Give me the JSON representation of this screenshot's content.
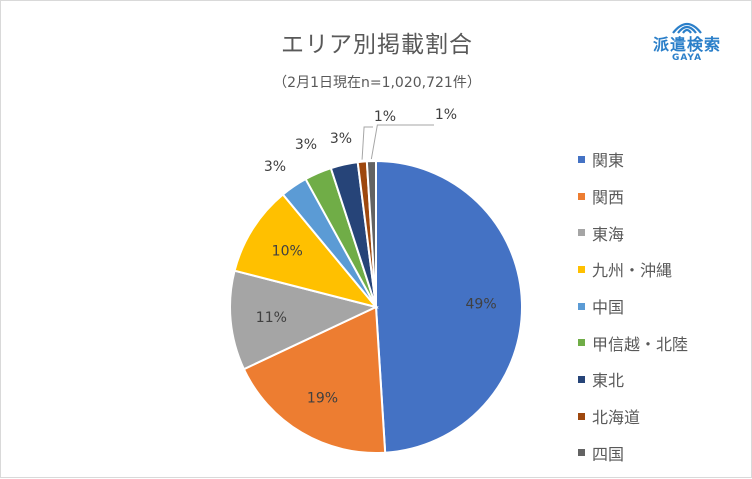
{
  "chart_data": {
    "type": "pie",
    "title": "エリア別掲載割合",
    "subtitle": "（2月1日現在n=1,020,721件）",
    "categories": [
      "関東",
      "関西",
      "東海",
      "九州・沖縄",
      "中国",
      "甲信越・北陸",
      "東北",
      "北海道",
      "四国"
    ],
    "values": [
      49,
      19,
      11,
      10,
      3,
      3,
      3,
      1,
      1
    ],
    "labels": [
      "49%",
      "19%",
      "11%",
      "10%",
      "3%",
      "3%",
      "3%",
      "1%",
      "1%"
    ],
    "colors": [
      "#4472c4",
      "#ed7d31",
      "#a5a5a5",
      "#ffc000",
      "#5b9bd5",
      "#70ad47",
      "#264478",
      "#9e480e",
      "#636363"
    ],
    "legend_position": "right",
    "start_angle": "12 o'clock, clockwise"
  },
  "logo": {
    "text": "派遣検索",
    "subtext": "GAYA",
    "icon": "signal-waves-icon",
    "color": "#2b7fc9"
  }
}
